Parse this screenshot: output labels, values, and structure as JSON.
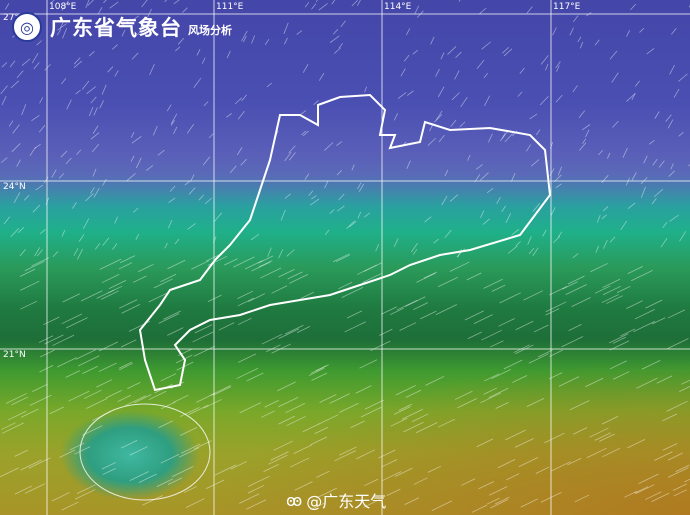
{
  "header": {
    "logo_icon": "cma-guangdong-logo",
    "title": "广东省气象台",
    "subtitle": "风场分析"
  },
  "grid": {
    "longitudes": [
      "108°E",
      "111°E",
      "114°E",
      "117°E"
    ],
    "latitudes": [
      "27°N",
      "24°N",
      "21°N"
    ]
  },
  "watermark": {
    "icon": "weibo-icon",
    "text": "@广东天气"
  },
  "colors": {
    "low_wind": "#4a4fb2",
    "mid_wind": "#1f7a40",
    "high_wind": "#a89428",
    "border": "#ffffff"
  }
}
